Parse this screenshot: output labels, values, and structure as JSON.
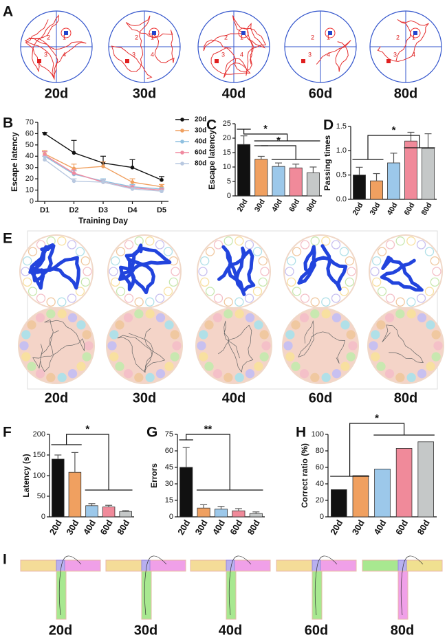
{
  "panel_labels": [
    "A",
    "B",
    "C",
    "D",
    "E",
    "F",
    "G",
    "H",
    "I"
  ],
  "panel_a": {
    "quadrant_labels": [
      "2",
      "1",
      "3",
      "4"
    ],
    "labels": [
      "20d",
      "30d",
      "40d",
      "60d",
      "80d"
    ]
  },
  "panel_e": {
    "labels": [
      "20d",
      "30d",
      "40d",
      "60d",
      "80d"
    ]
  },
  "panel_i": {
    "labels": [
      "20d",
      "30d",
      "40d",
      "60d",
      "80d"
    ]
  },
  "chart_data": [
    {
      "type": "line",
      "x_label": "Training Day",
      "y_label": "Escape latency",
      "categories": [
        "D1",
        "D2",
        "D3",
        "D4",
        "D5"
      ],
      "ylim": [
        0,
        70
      ],
      "yticks": [
        0,
        10,
        20,
        30,
        40,
        50,
        60,
        70
      ],
      "series": [
        {
          "name": "20d",
          "color": "#111111",
          "values": [
            60,
            43,
            34,
            30,
            19
          ],
          "errors": [
            1,
            11,
            6,
            7,
            3
          ]
        },
        {
          "name": "30d",
          "color": "#f0a060",
          "values": [
            42,
            29,
            31,
            17,
            13
          ],
          "errors": [
            3,
            4,
            4,
            3,
            2
          ]
        },
        {
          "name": "40d",
          "color": "#8fc0e0",
          "values": [
            40,
            24,
            18,
            13,
            11
          ],
          "errors": [
            4,
            3,
            2,
            2,
            1
          ]
        },
        {
          "name": "60d",
          "color": "#f08aa0",
          "values": [
            41,
            25,
            17,
            12,
            10
          ],
          "errors": [
            3,
            3,
            2,
            2,
            1
          ]
        },
        {
          "name": "80d",
          "color": "#b8c8e0",
          "values": [
            37,
            18,
            17,
            11,
            9
          ],
          "errors": [
            3,
            2,
            2,
            1,
            1
          ]
        }
      ]
    },
    {
      "type": "bar",
      "y_label": "Escape latency",
      "categories": [
        "20d",
        "30d",
        "40d",
        "60d",
        "80d"
      ],
      "values": [
        17.8,
        12.7,
        10.2,
        9.7,
        8.0
      ],
      "errors": [
        3,
        1,
        1.2,
        1.3,
        2
      ],
      "colors": [
        "#111111",
        "#f0a060",
        "#9cc8ea",
        "#f08a9a",
        "#c5c8c8"
      ],
      "ylim": [
        0,
        25
      ],
      "yticks": [
        0,
        5,
        10,
        15,
        20,
        25
      ],
      "annotations": [
        "*",
        "*"
      ]
    },
    {
      "type": "bar",
      "y_label": "Passing times",
      "categories": [
        "20d",
        "30d",
        "40d",
        "60d",
        "80d"
      ],
      "values": [
        0.5,
        0.38,
        0.75,
        1.2,
        1.05
      ],
      "errors": [
        0.16,
        0.15,
        0.2,
        0.18,
        0.3
      ],
      "colors": [
        "#111111",
        "#f0a060",
        "#9cc8ea",
        "#f08a9a",
        "#c5c8c8"
      ],
      "ylim": [
        0,
        1.5
      ],
      "yticks": [
        {
          "value": 0,
          "label": "0.0"
        },
        0.5,
        {
          "value": 1,
          "label": "1.0"
        },
        1.5
      ],
      "annotations": [
        "*"
      ]
    },
    {
      "type": "bar",
      "y_label": "Latency (s)",
      "categories": [
        "20d",
        "30d",
        "40d",
        "60d",
        "80d"
      ],
      "values": [
        140,
        108,
        27,
        24,
        13
      ],
      "errors": [
        10,
        48,
        5,
        4,
        2
      ],
      "colors": [
        "#111111",
        "#f0a060",
        "#9cc8ea",
        "#f08a9a",
        "#c5c8c8"
      ],
      "ylim": [
        0,
        200
      ],
      "yticks": [
        0,
        50,
        100,
        150,
        200
      ],
      "annotations": [
        "*"
      ]
    },
    {
      "type": "bar",
      "y_label": "Errors",
      "categories": [
        "20d",
        "30d",
        "40d",
        "60d",
        "80d"
      ],
      "values": [
        45,
        8,
        7,
        5.5,
        3
      ],
      "errors": [
        18,
        3,
        2.5,
        2,
        1.5
      ],
      "colors": [
        "#111111",
        "#f0a060",
        "#9cc8ea",
        "#f08a9a",
        "#c5c8c8"
      ],
      "ylim": [
        0,
        75
      ],
      "yticks": [
        0,
        15,
        30,
        45,
        60,
        75
      ],
      "annotations": [
        "**"
      ]
    },
    {
      "type": "bar",
      "y_label": "Correct ratio (%)",
      "categories": [
        "20d",
        "30d",
        "40d",
        "60d",
        "80d"
      ],
      "values": [
        33,
        50,
        58,
        83,
        91
      ],
      "colors": [
        "#111111",
        "#f0a060",
        "#9cc8ea",
        "#f08a9a",
        "#c5c8c8"
      ],
      "ylim": [
        0,
        100
      ],
      "yticks": [
        0,
        20,
        40,
        60,
        80,
        100
      ],
      "annotations": [
        "*"
      ]
    }
  ]
}
